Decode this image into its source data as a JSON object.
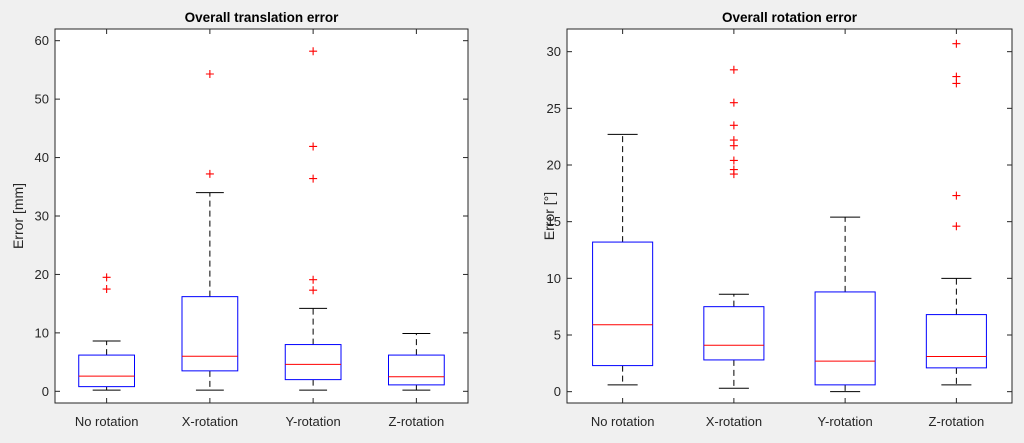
{
  "chart_data": [
    {
      "type": "box",
      "title": "Overall translation error",
      "xlabel": "",
      "ylabel": "Error [mm]",
      "ylim": [
        -2,
        62
      ],
      "yticks": [
        0,
        10,
        20,
        30,
        40,
        50,
        60
      ],
      "categories": [
        "No rotation",
        "X-rotation",
        "Y-rotation",
        "Z-rotation"
      ],
      "boxes": [
        {
          "whisker_low": 0.2,
          "q1": 0.8,
          "median": 2.6,
          "q3": 6.2,
          "whisker_high": 8.6,
          "outliers": [
            17.5,
            19.5
          ]
        },
        {
          "whisker_low": 0.2,
          "q1": 3.5,
          "median": 6.0,
          "q3": 16.2,
          "whisker_high": 34.0,
          "outliers": [
            37.2,
            54.3
          ]
        },
        {
          "whisker_low": 0.2,
          "q1": 2.0,
          "median": 4.6,
          "q3": 8.0,
          "whisker_high": 14.2,
          "outliers": [
            17.3,
            19.1,
            36.4,
            41.9,
            58.2
          ]
        },
        {
          "whisker_low": 0.2,
          "q1": 1.1,
          "median": 2.5,
          "q3": 6.2,
          "whisker_high": 9.9,
          "outliers": []
        }
      ]
    },
    {
      "type": "box",
      "title": "Overall rotation error",
      "xlabel": "",
      "ylabel": "Error [°]",
      "ylim": [
        -1,
        32
      ],
      "yticks": [
        0,
        5,
        10,
        15,
        20,
        25,
        30
      ],
      "categories": [
        "No rotation",
        "X-rotation",
        "Y-rotation",
        "Z-rotation"
      ],
      "boxes": [
        {
          "whisker_low": 0.6,
          "q1": 2.3,
          "median": 5.9,
          "q3": 13.2,
          "whisker_high": 22.7,
          "outliers": []
        },
        {
          "whisker_low": 0.3,
          "q1": 2.8,
          "median": 4.1,
          "q3": 7.5,
          "whisker_high": 8.6,
          "outliers": [
            19.2,
            19.6,
            20.4,
            21.7,
            22.2,
            23.5,
            25.5,
            28.4
          ]
        },
        {
          "whisker_low": 0.0,
          "q1": 0.6,
          "median": 2.7,
          "q3": 8.8,
          "whisker_high": 15.4,
          "outliers": []
        },
        {
          "whisker_low": 0.6,
          "q1": 2.1,
          "median": 3.1,
          "q3": 6.8,
          "whisker_high": 10.0,
          "outliers": [
            14.6,
            17.3,
            27.2,
            27.8,
            30.7
          ]
        }
      ]
    }
  ],
  "colors": {
    "box": "#0000ff",
    "median": "#ff0000",
    "whisker": "#000000",
    "outlier": "#ff0000",
    "axis": "#262626",
    "background": "#f0f0f0",
    "plot_background": "#ffffff"
  }
}
